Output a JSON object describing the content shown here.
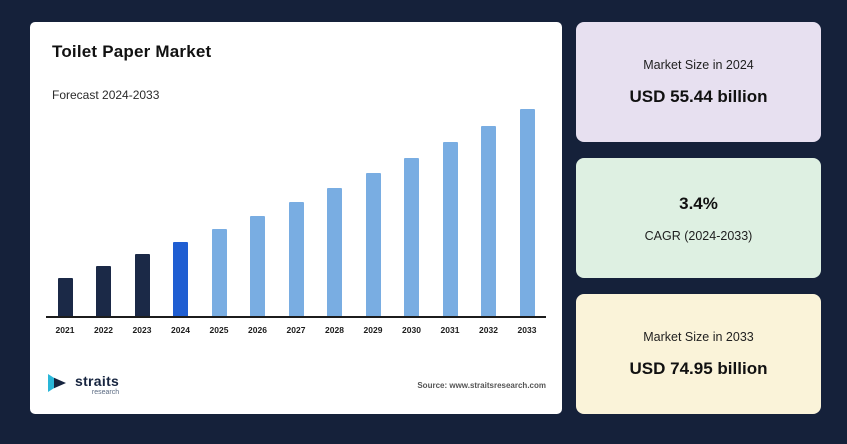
{
  "theme": {
    "background": "#15213a",
    "chart_card_background": "#ffffff",
    "bar_dark": "#1b2947",
    "bar_highlight": "#1f5ed2",
    "bar_light": "#79ade2",
    "stat1_bg": "#e7e0f0",
    "stat2_bg": "#def0e2",
    "stat3_bg": "#faf3d9",
    "logo_teal": "#29b6d8",
    "logo_dark": "#16243f"
  },
  "chart_card": {
    "title": "Toilet Paper Market",
    "subtitle": "Forecast 2024-2033",
    "source": "Source: www.straitsresearch.com",
    "logo_name": "straits",
    "logo_sub": "research"
  },
  "stats": [
    {
      "label": "Market Size in 2024",
      "value": "USD 55.44 billion"
    },
    {
      "value": "3.4%",
      "label": "CAGR (2024-2033)"
    },
    {
      "label": "Market Size in 2033",
      "value": "USD 74.95 billion"
    }
  ],
  "chart_data": {
    "type": "bar",
    "title": "Toilet Paper Market",
    "subtitle": "Forecast 2024-2033",
    "unit": "USD billion",
    "categories": [
      "2021",
      "2022",
      "2023",
      "2024",
      "2025",
      "2026",
      "2027",
      "2028",
      "2029",
      "2030",
      "2031",
      "2032",
      "2033"
    ],
    "values": [
      50.15,
      51.85,
      53.62,
      55.44,
      57.32,
      59.27,
      61.29,
      63.37,
      65.52,
      67.75,
      70.06,
      72.44,
      74.95
    ],
    "known_points": {
      "2024": 55.44,
      "2033": 74.95
    },
    "cagr_percent": 3.4,
    "highlight_category": "2024",
    "dark_categories": [
      "2021",
      "2022",
      "2023"
    ],
    "xlabel": "",
    "ylabel": "",
    "value_axis_visible": false,
    "grid": false,
    "legend": false,
    "baseline_not_zero": true
  }
}
